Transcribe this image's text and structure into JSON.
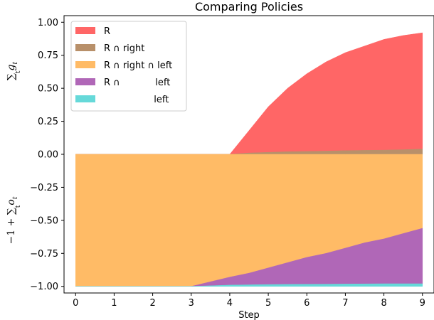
{
  "chart_data": {
    "type": "area",
    "title": "Comparing Policies",
    "xlabel": "Step",
    "ylabel_top": "∑_t g_t",
    "ylabel_bottom": "−1 + ∑_t o_t",
    "xlim": [
      -0.3,
      9.3
    ],
    "ylim": [
      -1.05,
      1.05
    ],
    "x": [
      0,
      1,
      2,
      3,
      4,
      4.5,
      5,
      5.5,
      6,
      6.5,
      7,
      7.5,
      8,
      8.5,
      9
    ],
    "x_ticks": [
      "0",
      "1",
      "2",
      "3",
      "4",
      "5",
      "6",
      "7",
      "8",
      "9"
    ],
    "y_ticks": [
      "1.00",
      "0.75",
      "0.50",
      "0.25",
      "0.00",
      "−0.25",
      "−0.50",
      "−0.75",
      "−1.00"
    ],
    "legend_position": "upper-left",
    "series": [
      {
        "name": "R",
        "color": "#ff6666",
        "y_lower": [
          0,
          0,
          0,
          0,
          0,
          0.01,
          0.015,
          0.02,
          0.022,
          0.025,
          0.028,
          0.03,
          0.032,
          0.035,
          0.04
        ],
        "y_upper": [
          0,
          0,
          0,
          0,
          0,
          0.18,
          0.36,
          0.5,
          0.61,
          0.7,
          0.77,
          0.82,
          0.87,
          0.9,
          0.92
        ]
      },
      {
        "name": "R ∩ right",
        "color": "#b8906a",
        "y_lower": [
          0,
          0,
          0,
          0,
          0,
          0,
          0,
          0,
          0,
          0,
          0,
          0,
          0,
          0,
          0
        ],
        "y_upper": [
          0,
          0,
          0,
          0,
          0,
          0.01,
          0.015,
          0.02,
          0.022,
          0.025,
          0.028,
          0.03,
          0.032,
          0.035,
          0.04
        ]
      },
      {
        "name": "R ∩ right ∩ left",
        "color": "#ffbb66",
        "y_lower": [
          -1.0,
          -1.0,
          -1.0,
          -1.0,
          -0.93,
          -0.9,
          -0.86,
          -0.82,
          -0.78,
          -0.75,
          -0.71,
          -0.67,
          -0.64,
          -0.6,
          -0.56
        ],
        "y_upper": [
          0,
          0,
          0,
          0,
          0,
          0,
          0,
          0,
          0,
          0,
          0,
          0,
          0,
          0,
          0
        ]
      },
      {
        "name": "R ∩            left",
        "color": "#b067b7",
        "y_lower": [
          -1.0,
          -1.0,
          -1.0,
          -1.0,
          -0.99,
          -0.988,
          -0.986,
          -0.985,
          -0.984,
          -0.983,
          -0.982,
          -0.981,
          -0.98,
          -0.98,
          -0.98
        ],
        "y_upper": [
          -1.0,
          -1.0,
          -1.0,
          -1.0,
          -0.93,
          -0.9,
          -0.86,
          -0.82,
          -0.78,
          -0.75,
          -0.71,
          -0.67,
          -0.64,
          -0.6,
          -0.56
        ]
      },
      {
        "name": "                 left",
        "color": "#66d9d9",
        "y_lower": [
          -1.0,
          -1.0,
          -1.0,
          -1.0,
          -1.0,
          -1.0,
          -1.0,
          -1.0,
          -1.0,
          -1.0,
          -1.0,
          -1.0,
          -1.0,
          -1.0,
          -1.0
        ],
        "y_upper": [
          -1.0,
          -1.0,
          -1.0,
          -1.0,
          -0.99,
          -0.988,
          -0.986,
          -0.985,
          -0.984,
          -0.983,
          -0.982,
          -0.981,
          -0.98,
          -0.98,
          -0.98
        ]
      }
    ]
  }
}
